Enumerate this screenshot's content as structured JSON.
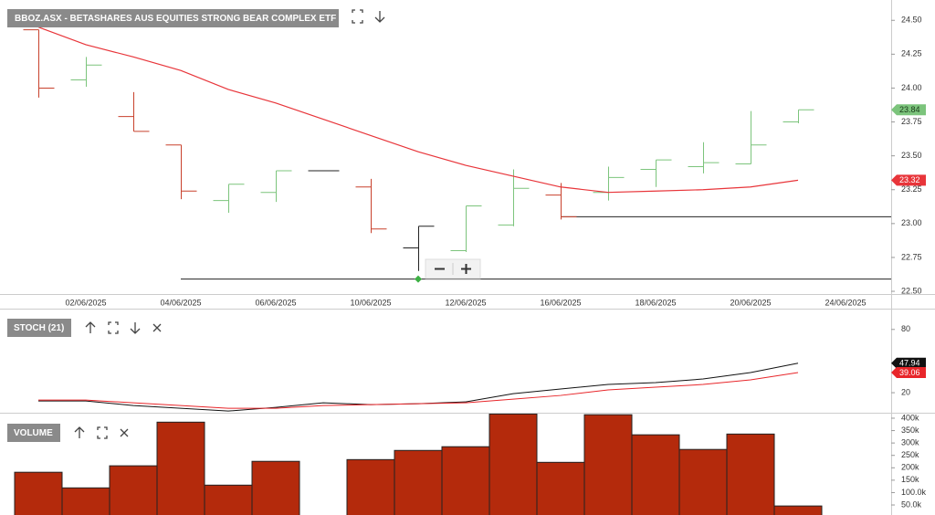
{
  "chart_data": [
    {
      "type": "ohlc",
      "title": "BBOZ.ASX - BETASHARES AUS EQUITIES STRONG BEAR COMPLEX ETF",
      "categories": [
        null,
        "02/06/2025",
        null,
        "04/06/2025",
        null,
        "06/06/2025",
        null,
        "10/06/2025",
        null,
        "12/06/2025",
        null,
        "16/06/2025",
        null,
        "18/06/2025",
        null,
        "20/06/2025",
        null,
        "24/06/2025"
      ],
      "open": [
        24.43,
        24.06,
        23.79,
        23.58,
        23.17,
        23.23,
        23.39,
        23.27,
        22.82,
        22.8,
        22.99,
        23.21,
        23.23,
        23.4,
        23.42,
        23.44,
        23.75,
        null
      ],
      "high": [
        24.43,
        24.23,
        23.97,
        23.58,
        23.29,
        23.39,
        23.39,
        23.33,
        22.98,
        23.13,
        23.4,
        23.3,
        23.42,
        23.47,
        23.6,
        23.83,
        23.84,
        null
      ],
      "low": [
        23.93,
        24.01,
        23.68,
        23.18,
        23.08,
        23.16,
        23.39,
        22.93,
        22.65,
        22.79,
        22.98,
        23.03,
        23.17,
        23.27,
        23.37,
        23.44,
        23.74,
        null
      ],
      "close": [
        24.0,
        24.17,
        23.68,
        23.24,
        23.29,
        23.39,
        23.39,
        22.96,
        22.98,
        23.13,
        23.26,
        23.05,
        23.34,
        23.47,
        23.45,
        23.58,
        23.84,
        null
      ],
      "bar_colors": [
        "#c8412c",
        "#7cc47c",
        "#c8412c",
        "#c8412c",
        "#7cc47c",
        "#7cc47c",
        "#222222",
        "#c8412c",
        "#222222",
        "#7cc47c",
        "#7cc47c",
        "#c8412c",
        "#7cc47c",
        "#7cc47c",
        "#7cc47c",
        "#7cc47c",
        "#7cc47c",
        null
      ],
      "ma": {
        "color": "#e8353a",
        "values": [
          24.45,
          24.32,
          24.23,
          24.13,
          23.99,
          23.89,
          23.77,
          23.65,
          23.53,
          23.43,
          23.35,
          23.27,
          23.23,
          23.24,
          23.25,
          23.27,
          23.32,
          null
        ]
      },
      "hlines": [
        {
          "start": 3,
          "value": 22.59,
          "color": "#222222"
        },
        {
          "start": 11,
          "value": 23.05,
          "color": "#222222"
        }
      ],
      "markers": [
        {
          "index": 8,
          "value": 22.59,
          "color": "#3cb043"
        }
      ],
      "ylim": [
        22.48,
        24.65
      ],
      "yticks": [
        {
          "value": 24.5,
          "label": "24.50"
        },
        24.25,
        {
          "value": 24,
          "label": "24.00"
        },
        23.75,
        {
          "value": 23.5,
          "label": "23.50"
        },
        23.25,
        {
          "value": 23,
          "label": "23.00"
        },
        22.75,
        {
          "value": 22.5,
          "label": "22.50"
        }
      ]
    },
    {
      "type": "line",
      "title": "STOCH (21)",
      "series": [
        {
          "color": "#111111",
          "values": [
            12.2,
            12.2,
            7.8,
            5.2,
            2.6,
            6.1,
            10.4,
            8.7,
            9.6,
            11.3,
            19.1,
            23.5,
            27.8,
            29.6,
            33.0,
            39.1,
            47.94,
            null
          ]
        },
        {
          "color": "#e8262a",
          "values": [
            13.0,
            13.0,
            10.4,
            7.8,
            5.2,
            5.2,
            7.8,
            8.7,
            9.6,
            10.4,
            13.9,
            17.4,
            22.6,
            25.2,
            27.8,
            32.2,
            39.06,
            null
          ]
        }
      ],
      "ylim": [
        1,
        98
      ],
      "yticks": [
        80,
        20
      ]
    },
    {
      "type": "bar",
      "title": "VOLUME",
      "values": [
        182000,
        119000,
        208000,
        384000,
        130000,
        226000,
        null,
        233000,
        270000,
        285000,
        417000,
        222000,
        414000,
        333000,
        274000,
        336000,
        46000,
        null
      ],
      "color": "#b42a0c",
      "ylim": [
        9600,
        422000
      ],
      "yticks": [
        {
          "value": 400000,
          "label": "400k"
        },
        {
          "value": 350000,
          "label": "350k"
        },
        {
          "value": 300000,
          "label": "300k"
        },
        {
          "value": 250000,
          "label": "250k"
        },
        {
          "value": 200000,
          "label": "200k"
        },
        {
          "value": 150000,
          "label": "150k"
        },
        {
          "value": 100000,
          "label": "100.0k"
        },
        {
          "value": 50000,
          "label": "50.0k"
        }
      ]
    }
  ]
}
